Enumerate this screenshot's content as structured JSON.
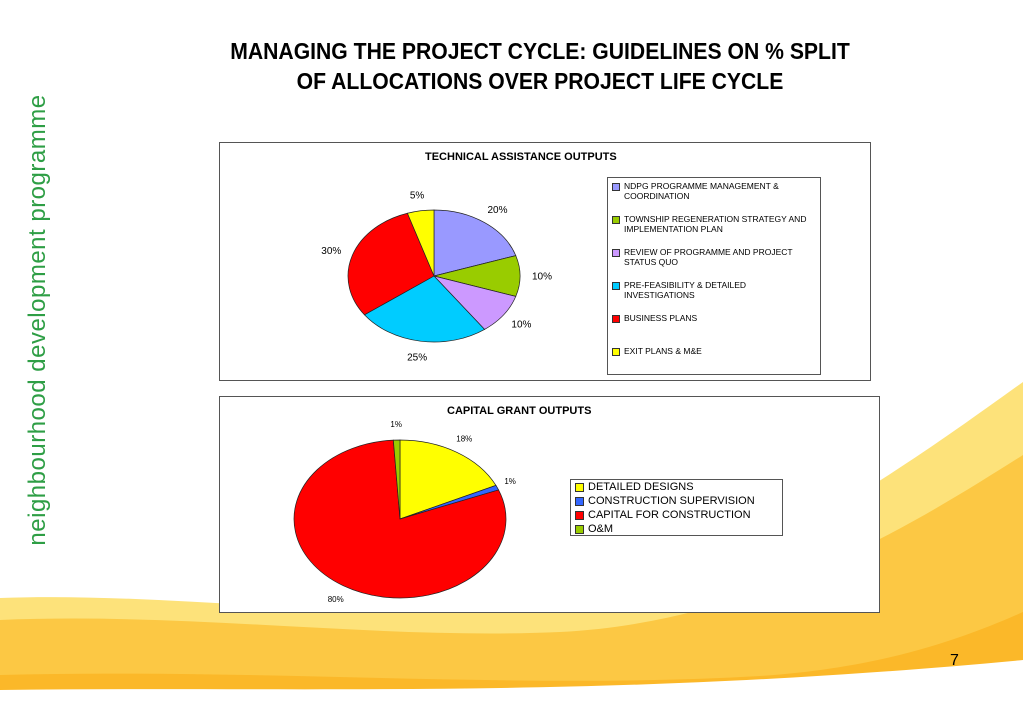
{
  "slide": {
    "side_label": "neighbourhood development programme",
    "title_line1": "MANAGING THE PROJECT CYCLE: GUIDELINES ON % SPLIT",
    "title_line2": "OF ALLOCATIONS OVER PROJECT LIFE CYCLE",
    "page_number": "7"
  },
  "chart_data": [
    {
      "type": "pie",
      "title": "TECHNICAL ASSISTANCE OUTPUTS",
      "categories": [
        "NDPG PROGRAMME MANAGEMENT & COORDINATION",
        "TOWNSHIP REGENERATION STRATEGY AND IMPLEMENTATION PLAN",
        "REVIEW OF PROGRAMME AND PROJECT STATUS QUO",
        "PRE-FEASIBILITY & DETAILED INVESTIGATIONS",
        "BUSINESS PLANS",
        "EXIT PLANS & M&E"
      ],
      "values": [
        20,
        10,
        10,
        25,
        30,
        5
      ],
      "data_labels": [
        "20%",
        "10%",
        "10%",
        "25%",
        "30%",
        "5%"
      ],
      "colors": [
        "#9999ff",
        "#99cc00",
        "#cc99ff",
        "#00ccff",
        "#ff0000",
        "#ffff00"
      ],
      "legend_position": "right"
    },
    {
      "type": "pie",
      "title": "CAPITAL GRANT OUTPUTS",
      "categories": [
        "DETAILED DESIGNS",
        "CONSTRUCTION SUPERVISION",
        "CAPITAL FOR CONSTRUCTION",
        "O&M"
      ],
      "values": [
        18,
        1,
        80,
        1
      ],
      "data_labels": [
        "18%",
        "1%",
        "80%",
        "1%"
      ],
      "colors": [
        "#ffff00",
        "#3366ff",
        "#ff0000",
        "#99cc00"
      ],
      "legend_position": "right"
    }
  ]
}
